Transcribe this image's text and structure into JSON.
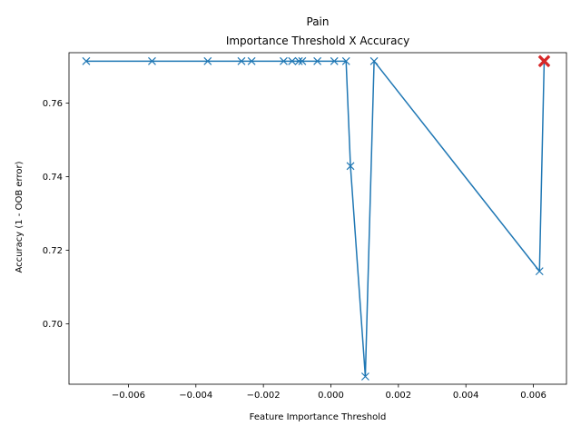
{
  "chart_data": {
    "type": "line",
    "title": "Pain",
    "subtitle": "Importance Threshold X Accuracy",
    "xlabel": "Feature Importance Threshold",
    "ylabel": "Accuracy (1 - OOB error)",
    "xlim": [
      -0.00776,
      0.00698
    ],
    "ylim": [
      0.6836,
      0.7737
    ],
    "xticks": [
      -0.006,
      -0.004,
      -0.002,
      0.0,
      0.002,
      0.004,
      0.006
    ],
    "xtick_labels": [
      "−0.006",
      "−0.004",
      "−0.002",
      "0.000",
      "0.002",
      "0.004",
      "0.006"
    ],
    "yticks": [
      0.7,
      0.72,
      0.74,
      0.76
    ],
    "ytick_labels": [
      "0.70",
      "0.72",
      "0.74",
      "0.76"
    ],
    "grid": false,
    "series": [
      {
        "color": "#1f77b4",
        "marker": "x",
        "x": [
          -0.00725,
          -0.0053,
          -0.00365,
          -0.00265,
          -0.00235,
          -0.0014,
          -0.00115,
          -0.00095,
          -0.00085,
          -0.0004,
          0.0001,
          0.00045,
          0.00058,
          0.00102,
          0.00128,
          0.00618,
          0.00632
        ],
        "y": [
          0.7714,
          0.7714,
          0.7714,
          0.7714,
          0.7714,
          0.7714,
          0.7714,
          0.7714,
          0.7714,
          0.7714,
          0.7714,
          0.7714,
          0.7429,
          0.6857,
          0.7714,
          0.7143,
          0.7714
        ]
      }
    ],
    "highlight": {
      "x": 0.00632,
      "y": 0.7714,
      "color": "#d62728",
      "marker": "X"
    }
  }
}
